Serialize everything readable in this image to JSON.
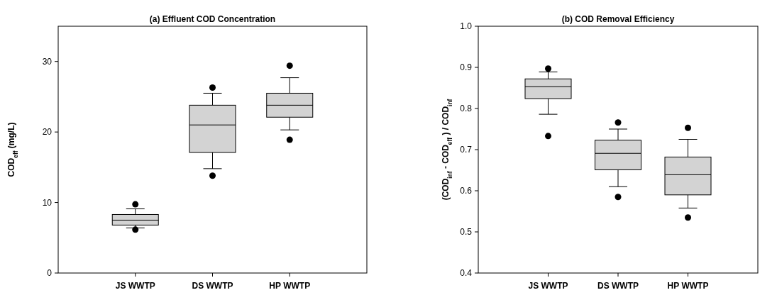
{
  "chart_data": [
    {
      "type": "box",
      "title": "(a) Effluent COD Concentration",
      "ylabel": "COD$_{eff}$ (mg/L)",
      "categories": [
        "JS WWTP",
        "DS WWTP",
        "HP WWTP"
      ],
      "color": "#d3d3d3",
      "ylim": [
        0,
        35
      ],
      "yticks": [
        0,
        10,
        20,
        30
      ],
      "boxes": [
        {
          "low": 6.4,
          "q1": 6.8,
          "median": 7.5,
          "q3": 8.3,
          "high": 9.1,
          "outliers": [
            9.75,
            6.15
          ]
        },
        {
          "low": 14.8,
          "q1": 17.1,
          "median": 21.0,
          "q3": 23.8,
          "high": 25.5,
          "outliers": [
            26.3,
            13.8
          ]
        },
        {
          "low": 20.3,
          "q1": 22.1,
          "median": 23.8,
          "q3": 25.5,
          "high": 27.7,
          "outliers": [
            29.4,
            18.9
          ]
        }
      ]
    },
    {
      "type": "box",
      "title": "(b) COD Removal Efficiency",
      "ylabel": "(COD$_{inf}$ - COD$_{eff}$ ) / COD$_{inf}$",
      "categories": [
        "JS WWTP",
        "DS WWTP",
        "HP WWTP"
      ],
      "color": "#d3d3d3",
      "ylim": [
        0.4,
        1.0
      ],
      "yticks": [
        {
          "value": 0.4,
          "label": "0.4"
        },
        {
          "value": 0.5,
          "label": "0.5"
        },
        {
          "value": 0.6,
          "label": "0.6"
        },
        {
          "value": 0.7,
          "label": "0.7"
        },
        {
          "value": 0.8,
          "label": "0.8"
        },
        {
          "value": 0.9,
          "label": "0.9"
        },
        {
          "value": 1.0,
          "label": "1.0"
        }
      ],
      "boxes": [
        {
          "low": 0.786,
          "q1": 0.824,
          "median": 0.853,
          "q3": 0.872,
          "high": 0.889,
          "outliers": [
            0.897,
            0.733
          ]
        },
        {
          "low": 0.61,
          "q1": 0.651,
          "median": 0.691,
          "q3": 0.723,
          "high": 0.75,
          "outliers": [
            0.766,
            0.585
          ]
        },
        {
          "low": 0.558,
          "q1": 0.59,
          "median": 0.639,
          "q3": 0.682,
          "high": 0.725,
          "outliers": [
            0.753,
            0.535
          ]
        }
      ]
    }
  ]
}
